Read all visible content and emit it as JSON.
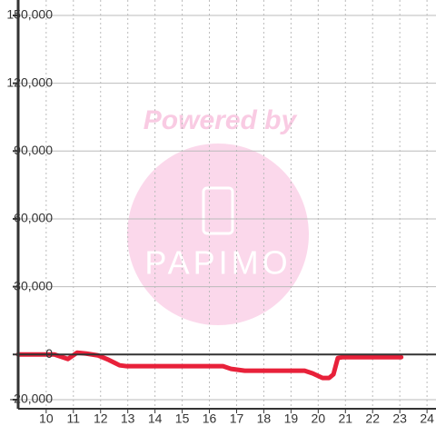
{
  "chart_data": {
    "type": "line",
    "watermark": {
      "top": "Powered by",
      "logo": "PAPIMO"
    },
    "x": [
      8.97,
      10.3,
      10.8,
      11.14,
      11.47,
      11.9,
      12.3,
      12.7,
      12.97,
      16.5,
      16.8,
      17.3,
      19.5,
      19.8,
      20.16,
      20.4,
      20.56,
      20.72,
      20.9,
      23.05
    ],
    "values": [
      0,
      0,
      -2000,
      800,
      400,
      -400,
      -2400,
      -4800,
      -5200,
      -5200,
      -6400,
      -7200,
      -7200,
      -8400,
      -10400,
      -10400,
      -8800,
      -1600,
      -1200,
      -1200
    ],
    "color": "#e8213a",
    "xlim": [
      8.97,
      24.33
    ],
    "xticks": [
      10,
      11,
      12,
      13,
      14,
      15,
      16,
      17,
      18,
      19,
      20,
      21,
      22,
      23,
      24
    ],
    "ylim": [
      -20000,
      150000
    ],
    "yticks": [
      {
        "value": -20000,
        "label": "-20,000"
      },
      {
        "value": 0,
        "label": "0"
      },
      {
        "value": 30000,
        "label": "30,000"
      },
      {
        "value": 60000,
        "label": "60,000"
      },
      {
        "value": 90000,
        "label": "90,000"
      },
      {
        "value": 120000,
        "label": "120,000"
      },
      {
        "value": 150000,
        "label": "150,000"
      }
    ],
    "grid": true
  }
}
